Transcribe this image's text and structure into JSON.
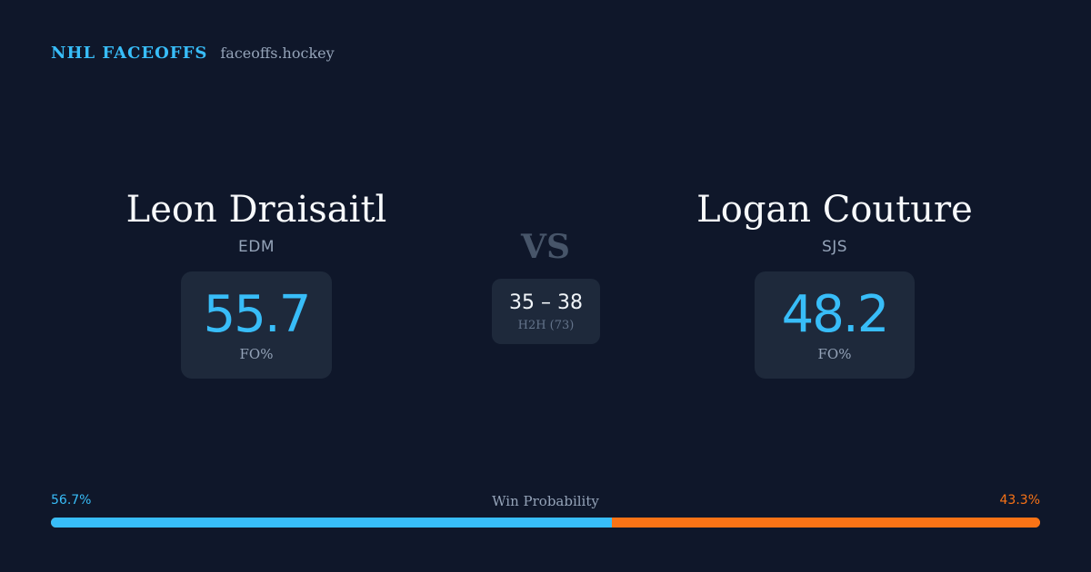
{
  "brand": {
    "name": "NHL FACEOFFS",
    "domain": "faceoffs.hockey"
  },
  "matchup": {
    "player1": {
      "name": "Leon Draisaitl",
      "team": "EDM",
      "fo_pct": "55.7",
      "fo_label": "FO%"
    },
    "vs_label": "VS",
    "player2": {
      "name": "Logan Couture",
      "team": "SJS",
      "fo_pct": "48.2",
      "fo_label": "FO%"
    },
    "head_to_head": {
      "score": "35 – 38",
      "label": "H2H (73)"
    }
  },
  "win_probability": {
    "title": "Win Probability",
    "left_label": "56.7%",
    "right_label": "43.3%",
    "left_fraction": 0.567,
    "left_color": "#38bdf8",
    "right_color": "#f97316"
  }
}
